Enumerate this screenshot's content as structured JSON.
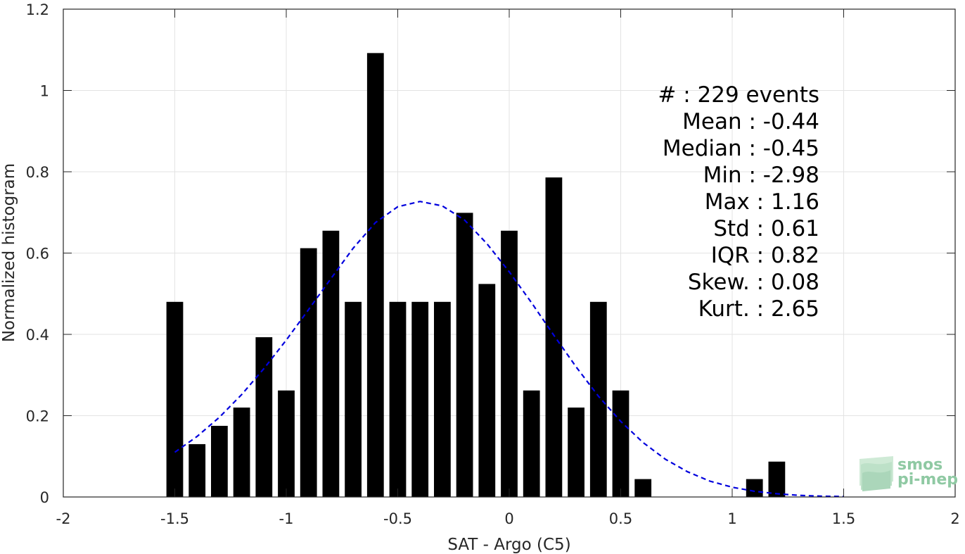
{
  "chart_data": {
    "type": "bar",
    "xlabel": "SAT - Argo (C5)",
    "ylabel": "Normalized histogram",
    "xlim": [
      -2,
      2
    ],
    "ylim": [
      0,
      1.2
    ],
    "xticks": [
      "-2",
      "-1.5",
      "-1",
      "-0.5",
      "0",
      "0.5",
      "1",
      "1.5",
      "2"
    ],
    "xtick_values": [
      -2,
      -1.5,
      -1,
      -0.5,
      0,
      0.5,
      1,
      1.5,
      2
    ],
    "yticks": [
      "0",
      "0.2",
      "0.4",
      "0.6",
      "0.8",
      "1",
      "1.2"
    ],
    "ytick_values": [
      0,
      0.2,
      0.4,
      0.6,
      0.8,
      1,
      1.2
    ],
    "grid": true,
    "bar_color": "#000000",
    "bars": {
      "x": [
        -1.5,
        -1.4,
        -1.3,
        -1.2,
        -1.1,
        -1.0,
        -0.9,
        -0.8,
        -0.7,
        -0.6,
        -0.5,
        -0.4,
        -0.3,
        -0.2,
        -0.1,
        0.0,
        0.1,
        0.2,
        0.3,
        0.4,
        0.5,
        0.6,
        1.1,
        1.2
      ],
      "values": [
        0.48,
        0.13,
        0.175,
        0.22,
        0.393,
        0.262,
        0.612,
        0.655,
        0.48,
        1.092,
        0.48,
        0.48,
        0.48,
        0.699,
        0.524,
        0.655,
        0.262,
        0.786,
        0.22,
        0.48,
        0.262,
        0.044,
        0.044,
        0.087
      ]
    },
    "fit_curve": {
      "style": "dashed",
      "color": "#0000dd",
      "x": [
        -1.5,
        -1.4,
        -1.3,
        -1.2,
        -1.1,
        -1.0,
        -0.9,
        -0.8,
        -0.7,
        -0.6,
        -0.5,
        -0.4,
        -0.3,
        -0.2,
        -0.1,
        0.0,
        0.1,
        0.2,
        0.3,
        0.4,
        0.5,
        0.6,
        0.7,
        0.8,
        0.9,
        1.0,
        1.1,
        1.2,
        1.3,
        1.4,
        1.5
      ],
      "y": [
        0.11,
        0.149,
        0.196,
        0.252,
        0.316,
        0.386,
        0.461,
        0.537,
        0.612,
        0.675,
        0.714,
        0.727,
        0.716,
        0.681,
        0.623,
        0.554,
        0.478,
        0.398,
        0.32,
        0.248,
        0.186,
        0.134,
        0.093,
        0.062,
        0.039,
        0.024,
        0.014,
        0.008,
        0.004,
        0.002,
        0.001
      ]
    },
    "stats": [
      {
        "label": "#  : 229 events"
      },
      {
        "label": "Mean : -0.44"
      },
      {
        "label": "Median : -0.45"
      },
      {
        "label": "Min : -2.98"
      },
      {
        "label": "Max : 1.16"
      },
      {
        "label": "Std : 0.61"
      },
      {
        "label": "IQR : 0.82"
      },
      {
        "label": "Skew. : 0.08"
      },
      {
        "label": "Kurt. : 2.65"
      }
    ]
  },
  "logo": {
    "line1": "smos",
    "line2": "pi-mep",
    "icon": "layered-waves-icon",
    "color": "#8fc9a3"
  }
}
